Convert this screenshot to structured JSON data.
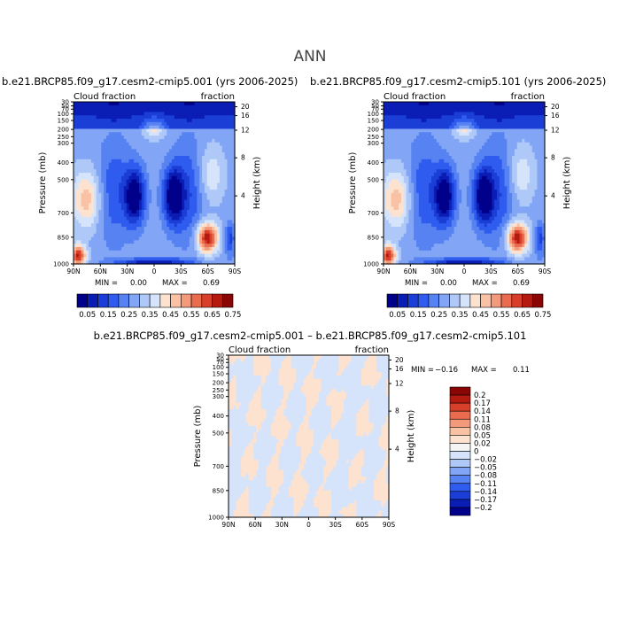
{
  "page": {
    "title": "ANN"
  },
  "chart_data": [
    {
      "type": "heatmap",
      "panel": "top-left",
      "title": "b.e21.BRCP85.f09_g17.cesm2-cmip5.001 (yrs 2006-2025)",
      "left_label": "Cloud fraction",
      "right_label": "fraction",
      "ylabel": "Pressure (mb)",
      "ylabel_right": "Height (km)",
      "x_ticks": [
        "90N",
        "60N",
        "30N",
        "0",
        "30S",
        "60S",
        "90S"
      ],
      "y_ticks": [
        "30",
        "50",
        "70",
        "100",
        "150",
        "200",
        "250",
        "300",
        "400",
        "500",
        "700",
        "850",
        "1000"
      ],
      "y_ticks_right": [
        "20",
        "16",
        "12",
        "8",
        "4"
      ],
      "stats": {
        "min_label": "MIN =",
        "min": "0.00",
        "max_label": "MAX =",
        "max": "0.69"
      },
      "colorbar": {
        "orientation": "horizontal",
        "labels": [
          "0.05",
          "0.15",
          "0.25",
          "0.35",
          "0.45",
          "0.55",
          "0.65",
          "0.75"
        ],
        "colors": [
          "#00008b",
          "#0a1db4",
          "#1a3ed6",
          "#2f5cef",
          "#5782f2",
          "#82a6f5",
          "#aec8f8",
          "#d5e4fb",
          "#fde2cf",
          "#f9c2a4",
          "#f39a7a",
          "#eb6b4f",
          "#d83f2a",
          "#b51a10",
          "#8a0606"
        ]
      }
    },
    {
      "type": "heatmap",
      "panel": "top-right",
      "title": "b.e21.BRCP85.f09_g17.cesm2-cmip5.101 (yrs 2006-2025)",
      "left_label": "Cloud fraction",
      "right_label": "fraction",
      "ylabel": "Pressure (mb)",
      "ylabel_right": "Height (km)",
      "x_ticks": [
        "90N",
        "60N",
        "30N",
        "0",
        "30S",
        "60S",
        "90S"
      ],
      "y_ticks": [
        "30",
        "50",
        "70",
        "100",
        "150",
        "200",
        "250",
        "300",
        "400",
        "500",
        "700",
        "850",
        "1000"
      ],
      "y_ticks_right": [
        "20",
        "16",
        "12",
        "8",
        "4"
      ],
      "stats": {
        "min_label": "MIN =",
        "min": "0.00",
        "max_label": "MAX =",
        "max": "0.69"
      },
      "colorbar": {
        "orientation": "horizontal",
        "labels": [
          "0.05",
          "0.15",
          "0.25",
          "0.35",
          "0.45",
          "0.55",
          "0.65",
          "0.75"
        ],
        "colors": [
          "#00008b",
          "#0a1db4",
          "#1a3ed6",
          "#2f5cef",
          "#5782f2",
          "#82a6f5",
          "#aec8f8",
          "#d5e4fb",
          "#fde2cf",
          "#f9c2a4",
          "#f39a7a",
          "#eb6b4f",
          "#d83f2a",
          "#b51a10",
          "#8a0606"
        ]
      }
    },
    {
      "type": "heatmap",
      "panel": "bottom-difference",
      "title": "b.e21.BRCP85.f09_g17.cesm2-cmip5.001 – b.e21.BRCP85.f09_g17.cesm2-cmip5.101",
      "left_label": "Cloud fraction",
      "right_label": "fraction",
      "ylabel": "Pressure (mb)",
      "ylabel_right": "Height (km)",
      "x_ticks": [
        "90N",
        "60N",
        "30N",
        "0",
        "30S",
        "60S",
        "90S"
      ],
      "y_ticks": [
        "30",
        "50",
        "70",
        "100",
        "150",
        "200",
        "250",
        "300",
        "400",
        "500",
        "700",
        "850",
        "1000"
      ],
      "y_ticks_right": [
        "20",
        "16",
        "12",
        "8",
        "4"
      ],
      "stats": {
        "min_label": "MIN =",
        "min": "−0.16",
        "max_label": "MAX =",
        "max": "0.11"
      },
      "colorbar": {
        "orientation": "vertical",
        "labels": [
          "0.2",
          "0.17",
          "0.14",
          "0.11",
          "0.08",
          "0.05",
          "0.02",
          "0",
          "−0.02",
          "−0.05",
          "−0.08",
          "−0.11",
          "−0.14",
          "−0.17",
          "−0.2"
        ],
        "colors": [
          "#8a0606",
          "#b51a10",
          "#d83f2a",
          "#eb6b4f",
          "#f39a7a",
          "#f9c2a4",
          "#fde2cf",
          "#f4f4f4",
          "#d5e4fb",
          "#aec8f8",
          "#82a6f5",
          "#5782f2",
          "#2f5cef",
          "#1a3ed6",
          "#0a1db4",
          "#00008b"
        ]
      }
    }
  ]
}
